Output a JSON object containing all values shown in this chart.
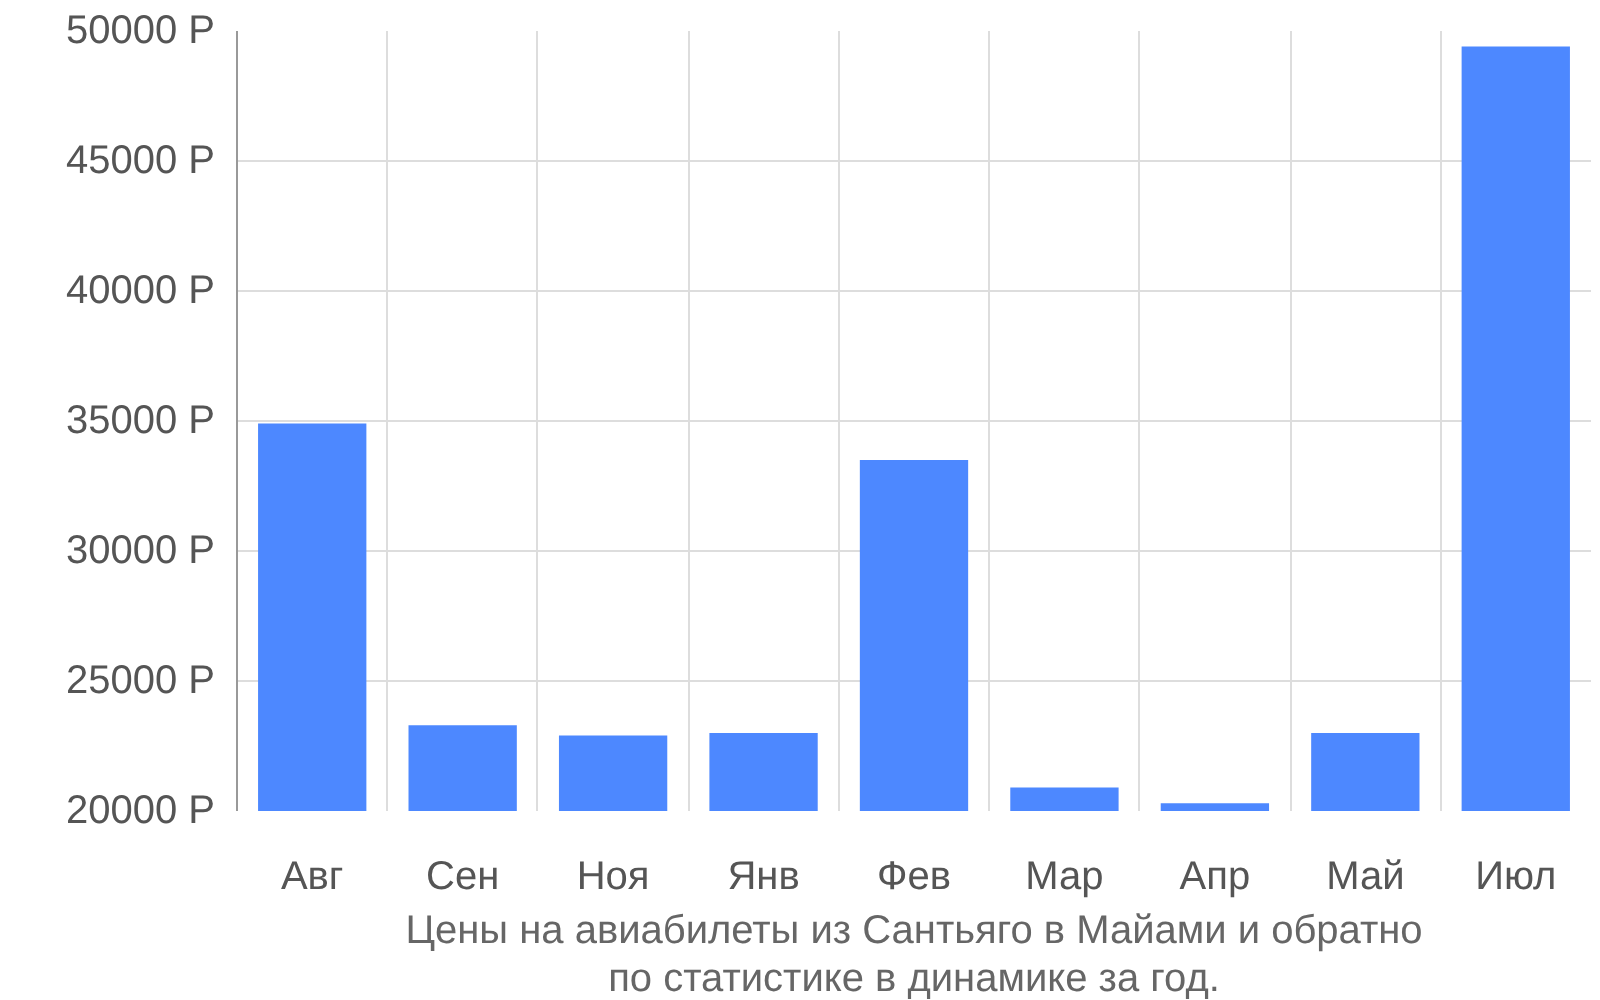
{
  "chart_data": {
    "type": "bar",
    "categories": [
      "Авг",
      "Сен",
      "Ноя",
      "Янв",
      "Фев",
      "Мар",
      "Апр",
      "Май",
      "Июл"
    ],
    "values": [
      34900,
      23300,
      22900,
      23000,
      33500,
      20900,
      20300,
      23000,
      49400
    ],
    "color": "#4d88ff",
    "ylim": [
      20000,
      50000
    ],
    "yticks": [
      {
        "value": 20000,
        "label": "20000 Р"
      },
      {
        "value": 25000,
        "label": "25000 Р"
      },
      {
        "value": 30000,
        "label": "30000 Р"
      },
      {
        "value": 35000,
        "label": "35000 Р"
      },
      {
        "value": 40000,
        "label": "40000 Р"
      },
      {
        "value": 45000,
        "label": "45000 Р"
      },
      {
        "value": 50000,
        "label": "50000 Р"
      }
    ],
    "grid": true,
    "annotations": [
      "Цены на авиабилеты из Сантьяго в Майами и обратно",
      "по статистике в динамике за год."
    ]
  }
}
